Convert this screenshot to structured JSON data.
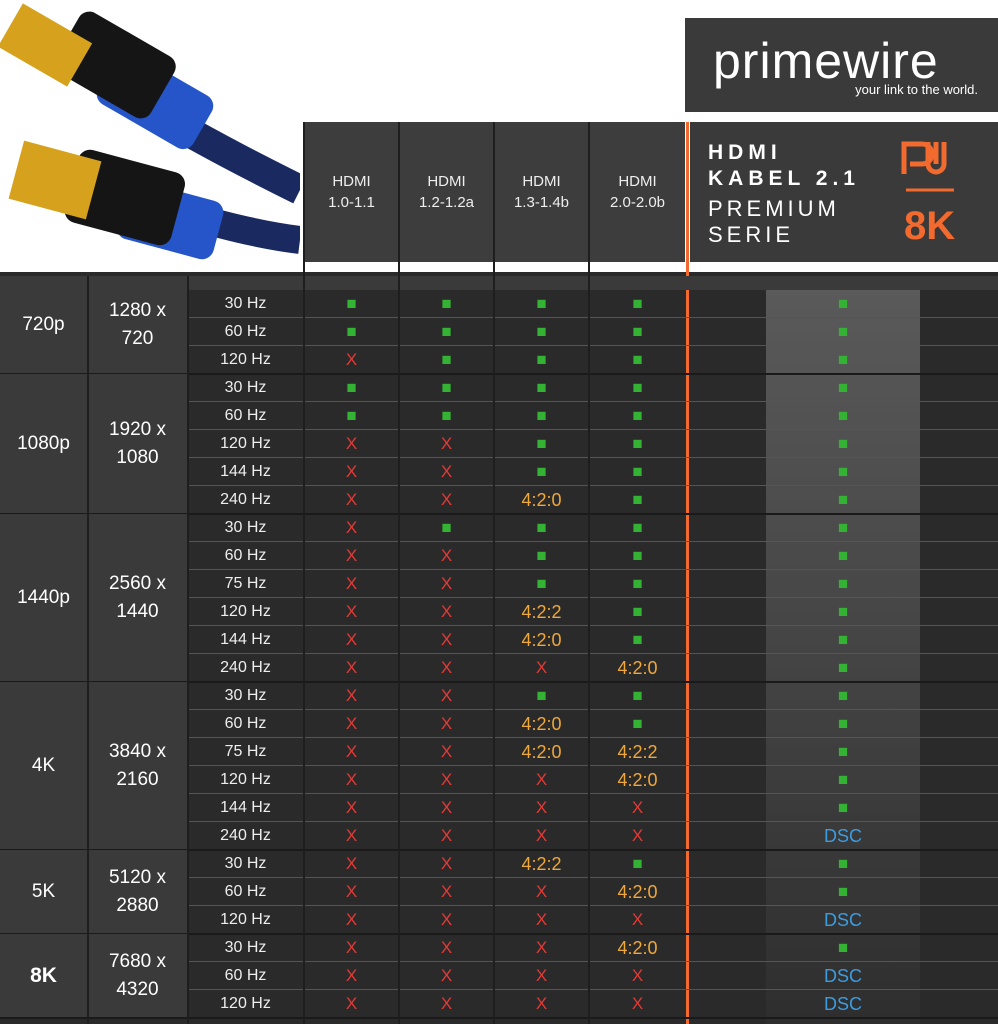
{
  "brand": {
    "name": "primewire",
    "tagline": "your link to the world."
  },
  "columns": [
    {
      "line1": "HDMI",
      "line2": "1.0-1.1"
    },
    {
      "line1": "HDMI",
      "line2": "1.2-1.2a"
    },
    {
      "line1": "HDMI",
      "line2": "1.3-1.4b"
    },
    {
      "line1": "HDMI",
      "line2": "2.0-2.0b"
    }
  ],
  "premium": {
    "title": [
      "HDMI",
      "KABEL 2.1"
    ],
    "subtitle": [
      "PREMIUM",
      "SERIE"
    ],
    "badge": "8K"
  },
  "colors": {
    "■": "#34b233",
    "X": "#e53935",
    "4:2:0": "#f0a838",
    "4:2:2": "#f0a838",
    "DSC": "#3c9ce0"
  },
  "groups": [
    {
      "name": "720p",
      "resolution": [
        "1280 x",
        "720"
      ],
      "rows": [
        {
          "rate": "30 Hz",
          "cells": [
            "■",
            "■",
            "■",
            "■",
            "■"
          ]
        },
        {
          "rate": "60 Hz",
          "cells": [
            "■",
            "■",
            "■",
            "■",
            "■"
          ]
        },
        {
          "rate": "120 Hz",
          "cells": [
            "X",
            "■",
            "■",
            "■",
            "■"
          ]
        }
      ]
    },
    {
      "name": "1080p",
      "resolution": [
        "1920 x",
        "1080"
      ],
      "rows": [
        {
          "rate": "30 Hz",
          "cells": [
            "■",
            "■",
            "■",
            "■",
            "■"
          ]
        },
        {
          "rate": "60 Hz",
          "cells": [
            "■",
            "■",
            "■",
            "■",
            "■"
          ]
        },
        {
          "rate": "120 Hz",
          "cells": [
            "X",
            "X",
            "■",
            "■",
            "■"
          ]
        },
        {
          "rate": "144 Hz",
          "cells": [
            "X",
            "X",
            "■",
            "■",
            "■"
          ]
        },
        {
          "rate": "240 Hz",
          "cells": [
            "X",
            "X",
            "4:2:0",
            "■",
            "■"
          ]
        }
      ]
    },
    {
      "name": "1440p",
      "resolution": [
        "2560 x",
        "1440"
      ],
      "rows": [
        {
          "rate": "30 Hz",
          "cells": [
            "X",
            "■",
            "■",
            "■",
            "■"
          ]
        },
        {
          "rate": "60 Hz",
          "cells": [
            "X",
            "X",
            "■",
            "■",
            "■"
          ]
        },
        {
          "rate": "75 Hz",
          "cells": [
            "X",
            "X",
            "■",
            "■",
            "■"
          ]
        },
        {
          "rate": "120 Hz",
          "cells": [
            "X",
            "X",
            "4:2:2",
            "■",
            "■"
          ]
        },
        {
          "rate": "144 Hz",
          "cells": [
            "X",
            "X",
            "4:2:0",
            "■",
            "■"
          ]
        },
        {
          "rate": "240 Hz",
          "cells": [
            "X",
            "X",
            "X",
            "4:2:0",
            "■"
          ]
        }
      ]
    },
    {
      "name": "4K",
      "resolution": [
        "3840 x",
        "2160"
      ],
      "rows": [
        {
          "rate": "30 Hz",
          "cells": [
            "X",
            "X",
            "■",
            "■",
            "■"
          ]
        },
        {
          "rate": "60 Hz",
          "cells": [
            "X",
            "X",
            "4:2:0",
            "■",
            "■"
          ]
        },
        {
          "rate": "75 Hz",
          "cells": [
            "X",
            "X",
            "4:2:0",
            "4:2:2",
            "■"
          ]
        },
        {
          "rate": "120 Hz",
          "cells": [
            "X",
            "X",
            "X",
            "4:2:0",
            "■"
          ]
        },
        {
          "rate": "144 Hz",
          "cells": [
            "X",
            "X",
            "X",
            "X",
            "■"
          ]
        },
        {
          "rate": "240 Hz",
          "cells": [
            "X",
            "X",
            "X",
            "X",
            "DSC"
          ]
        }
      ]
    },
    {
      "name": "5K",
      "resolution": [
        "5120 x",
        "2880"
      ],
      "rows": [
        {
          "rate": "30 Hz",
          "cells": [
            "X",
            "X",
            "4:2:2",
            "■",
            "■"
          ]
        },
        {
          "rate": "60 Hz",
          "cells": [
            "X",
            "X",
            "X",
            "4:2:0",
            "■"
          ]
        },
        {
          "rate": "120 Hz",
          "cells": [
            "X",
            "X",
            "X",
            "X",
            "DSC"
          ]
        }
      ]
    },
    {
      "name": "8K",
      "resolution": [
        "7680 x",
        "4320"
      ],
      "rows": [
        {
          "rate": "30 Hz",
          "cells": [
            "X",
            "X",
            "X",
            "4:2:0",
            "■"
          ]
        },
        {
          "rate": "60 Hz",
          "cells": [
            "X",
            "X",
            "X",
            "X",
            "DSC"
          ]
        },
        {
          "rate": "120 Hz",
          "cells": [
            "X",
            "X",
            "X",
            "X",
            "DSC"
          ]
        }
      ]
    }
  ]
}
